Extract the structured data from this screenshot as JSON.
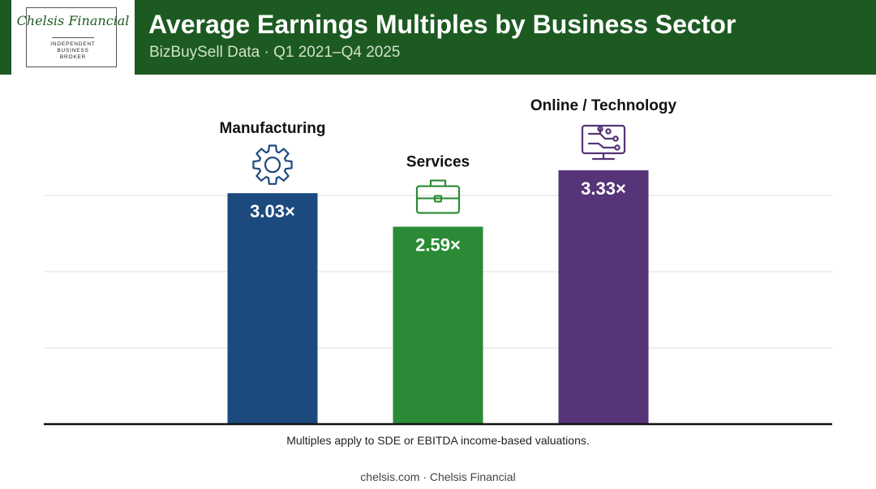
{
  "header": {
    "title": "Average Earnings Multiples by Business Sector",
    "subtitle": "BizBuySell Data · Q1 2021–Q4 2025"
  },
  "logo": {
    "name": "Chelsis Financial",
    "tagline": "INDEPENDENT\nBUSINESS\nBROKER"
  },
  "chart_data": {
    "type": "bar",
    "categories": [
      "Manufacturing",
      "Services",
      "Online / Technology"
    ],
    "values": [
      3.03,
      2.59,
      3.33
    ],
    "value_labels": [
      "3.03×",
      "2.59×",
      "3.33×"
    ],
    "icons": [
      "gear-icon",
      "briefcase-icon",
      "monitor-circuit-icon"
    ],
    "colors": [
      "#1c4a7e",
      "#2a8a35",
      "#553478"
    ],
    "ylim": [
      0,
      3.9
    ],
    "gridlines": [
      1,
      2,
      3
    ],
    "grid": true,
    "title": "",
    "xlabel": "",
    "ylabel": ""
  },
  "note": "Multiples apply to SDE or EBITDA income-based valuations.",
  "footer": "chelsis.com · Chelsis Financial"
}
